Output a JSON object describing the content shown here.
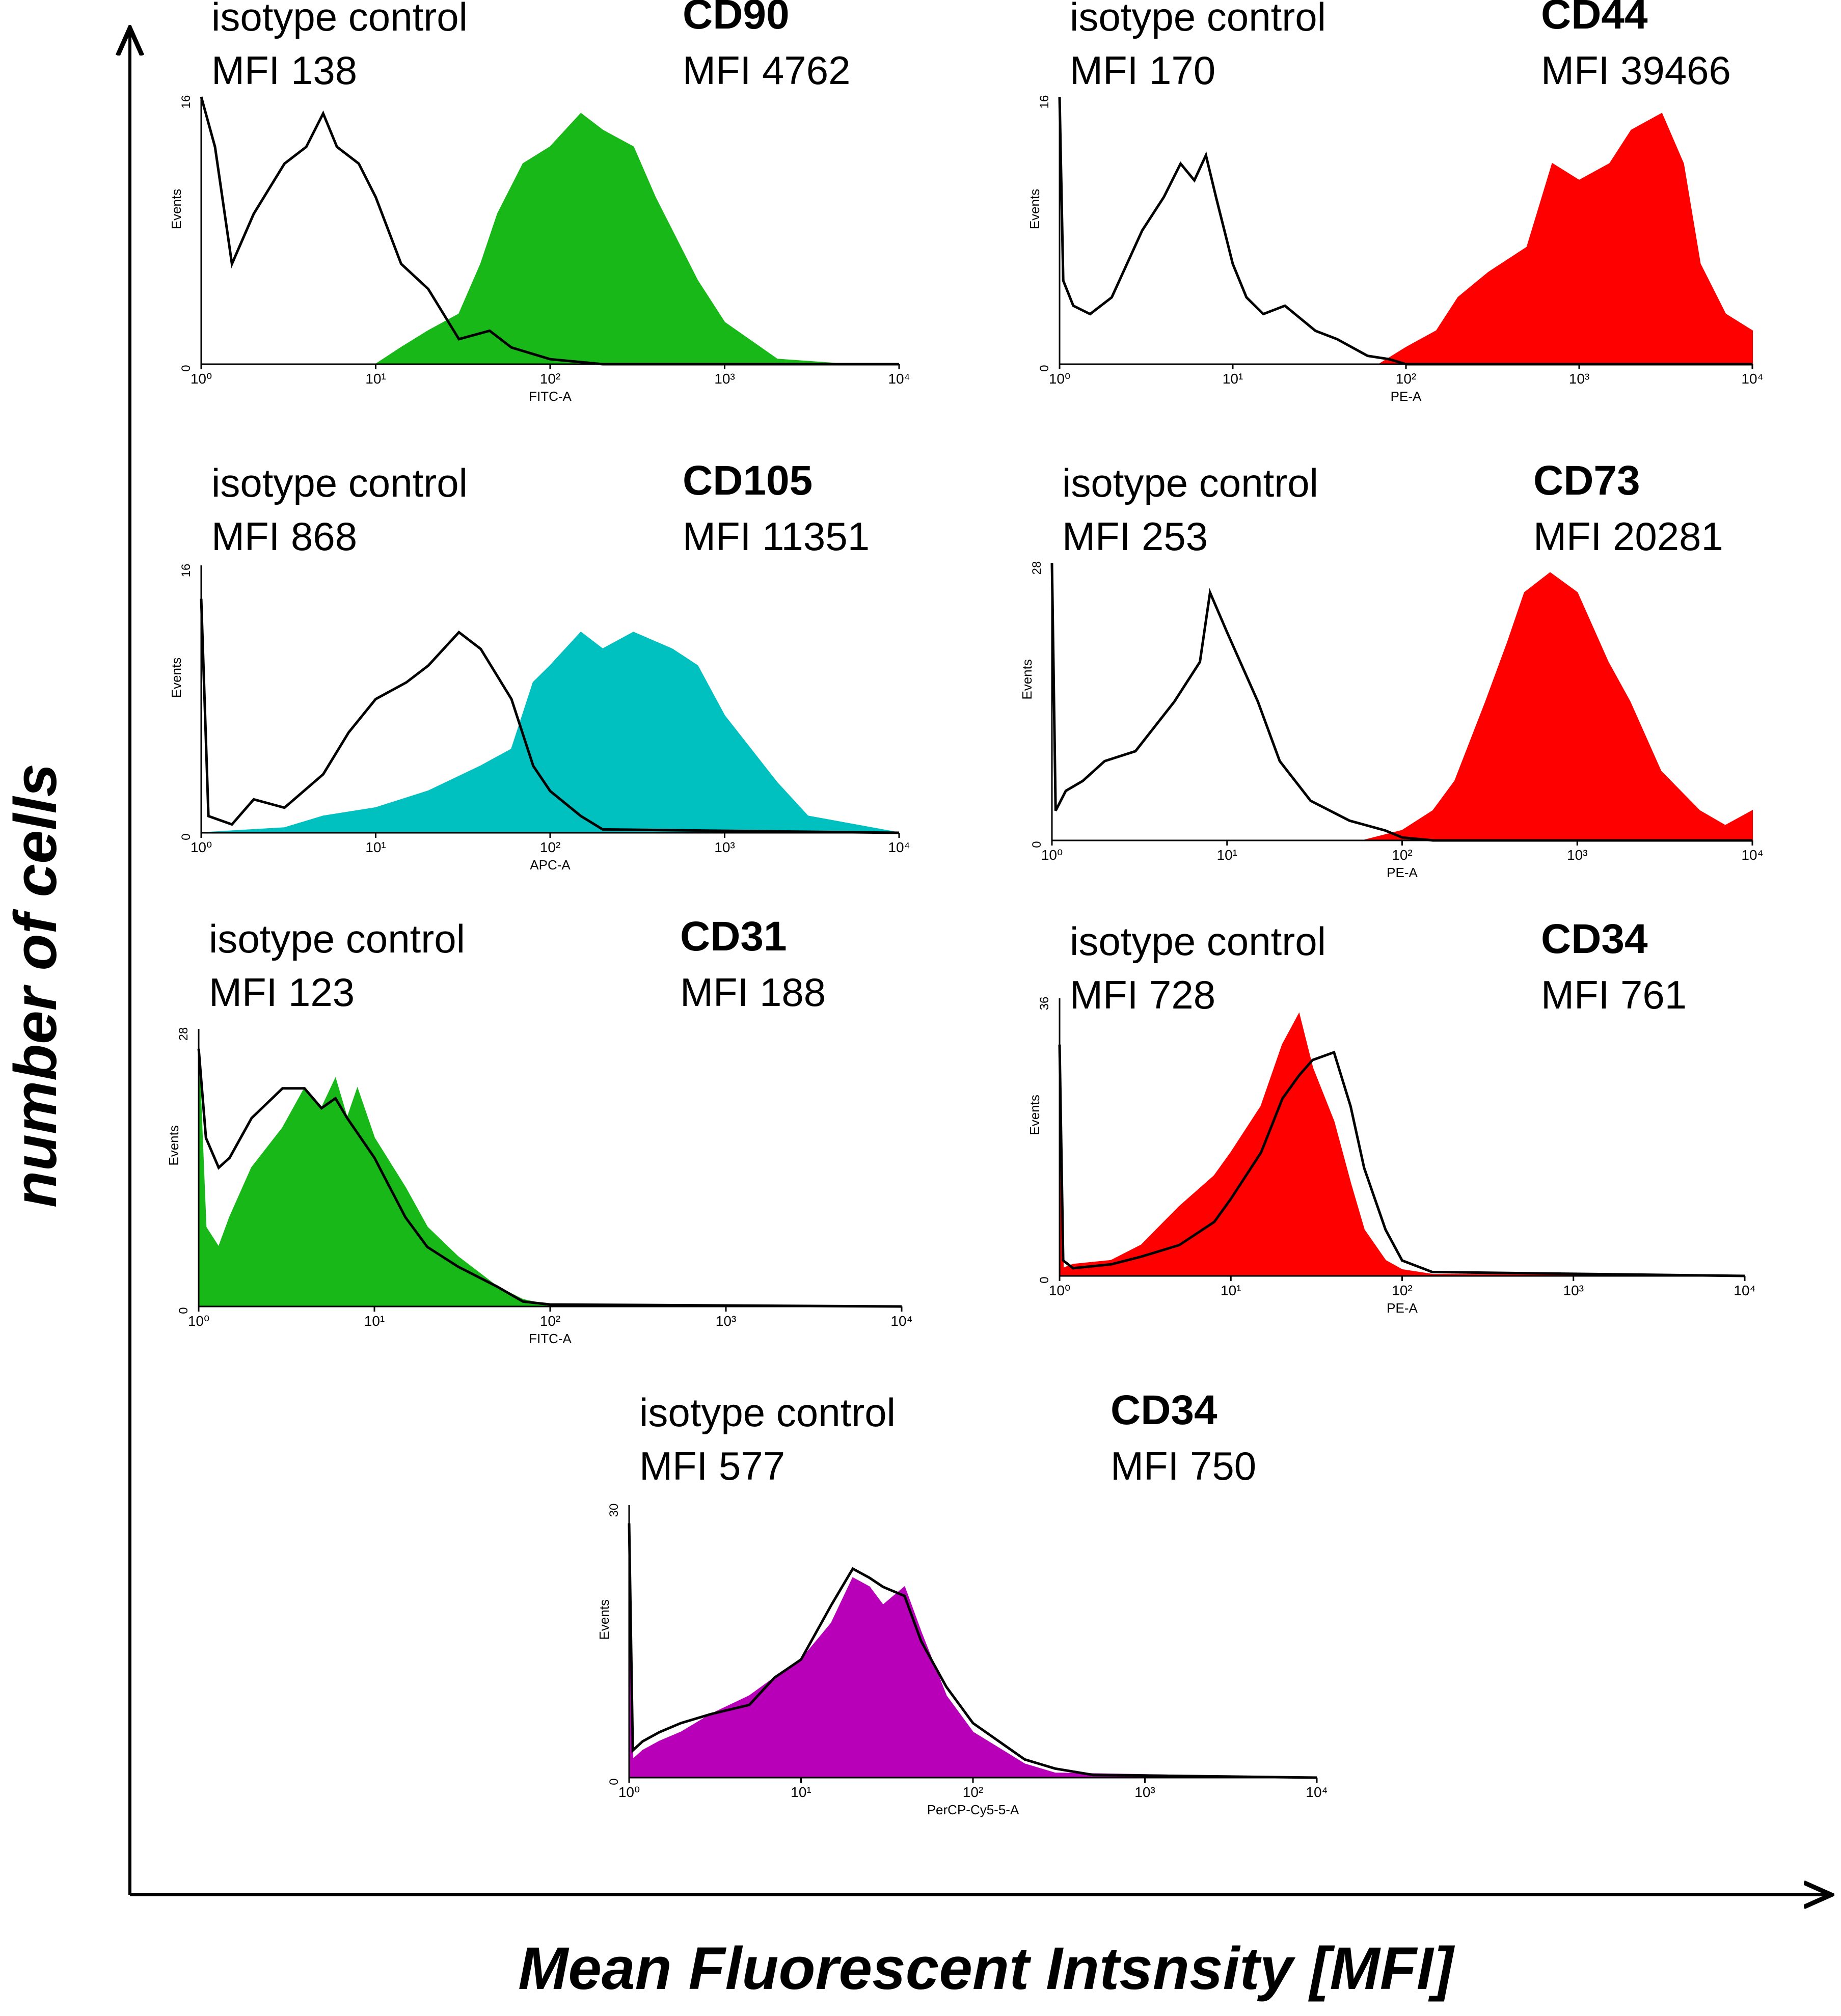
{
  "figure": {
    "y_axis_label": "number of cells",
    "x_axis_label": "Mean Fluorescent Intsnsity [MFI]"
  },
  "chart_data": [
    {
      "type": "area",
      "title": "CD90",
      "control_label": "isotype control",
      "control_mfi": "MFI 138",
      "marker_mfi": "MFI 4762",
      "channel": "FITC-A",
      "ylabel": "Events",
      "ymax_label": "16",
      "ymin_label": "0",
      "ylim": [
        0,
        16
      ],
      "xscale": "log",
      "xlim": [
        1,
        10000
      ],
      "x_ticks": [
        "10⁰",
        "10¹",
        "10²",
        "10³",
        "10⁴"
      ],
      "fill_color": "#18b818",
      "series": [
        {
          "name": "isotype control",
          "style": "outline",
          "x": [
            1,
            1.2,
            1.5,
            2,
            3,
            4,
            5,
            6,
            8,
            10,
            14,
            20,
            30,
            45,
            60,
            100,
            200,
            10000
          ],
          "values": [
            16,
            13,
            6,
            9,
            12,
            13,
            15,
            13,
            12,
            10,
            6,
            4.5,
            1.5,
            2,
            1,
            0.3,
            0,
            0
          ]
        },
        {
          "name": "CD90",
          "style": "filled",
          "x": [
            1,
            10,
            14,
            20,
            30,
            40,
            50,
            70,
            100,
            150,
            200,
            300,
            400,
            500,
            700,
            1000,
            2000,
            5000,
            10000
          ],
          "values": [
            0,
            0,
            1,
            2,
            3,
            6,
            9,
            12,
            13,
            15,
            14,
            13,
            10,
            8,
            5,
            2.5,
            0.3,
            0,
            0
          ]
        }
      ]
    },
    {
      "type": "area",
      "title": "CD44",
      "control_label": "isotype control",
      "control_mfi": "MFI 170",
      "marker_mfi": "MFI 39466",
      "channel": "PE-A",
      "ylabel": "Events",
      "ymax_label": "16",
      "ymin_label": "0",
      "ylim": [
        0,
        16
      ],
      "xscale": "log",
      "xlim": [
        1,
        10000
      ],
      "x_ticks": [
        "10⁰",
        "10¹",
        "10²",
        "10³",
        "10⁴"
      ],
      "fill_color": "#ff0000",
      "series": [
        {
          "name": "isotype control",
          "style": "outline",
          "x": [
            1,
            1.05,
            1.2,
            1.5,
            2,
            3,
            4,
            5,
            6,
            7,
            8,
            10,
            12,
            15,
            20,
            30,
            40,
            60,
            80,
            100,
            10000
          ],
          "values": [
            16,
            5,
            3.5,
            3,
            4,
            8,
            10,
            12,
            11,
            12.5,
            10,
            6,
            4,
            3,
            3.5,
            2,
            1.5,
            0.5,
            0.3,
            0,
            0
          ]
        },
        {
          "name": "CD44",
          "style": "filled",
          "x": [
            1,
            70,
            100,
            150,
            200,
            300,
            500,
            700,
            1000,
            1500,
            2000,
            3000,
            4000,
            5000,
            7000,
            10000
          ],
          "values": [
            0,
            0,
            1,
            2,
            4,
            5.5,
            7,
            12,
            11,
            12,
            14,
            15,
            12,
            6,
            3,
            2
          ]
        }
      ]
    },
    {
      "type": "area",
      "title": "CD105",
      "control_label": "isotype control",
      "control_mfi": "MFI 868",
      "marker_mfi": "MFI 11351",
      "channel": "APC-A",
      "ylabel": "Events",
      "ymax_label": "16",
      "ymin_label": "0",
      "ylim": [
        0,
        16
      ],
      "xscale": "log",
      "xlim": [
        1,
        10000
      ],
      "x_ticks": [
        "10⁰",
        "10¹",
        "10²",
        "10³",
        "10⁴"
      ],
      "fill_color": "#00c0c0",
      "series": [
        {
          "name": "isotype control",
          "style": "outline",
          "x": [
            1,
            1.1,
            1.5,
            2,
            3,
            5,
            7,
            10,
            15,
            20,
            30,
            40,
            60,
            80,
            100,
            150,
            200,
            10000
          ],
          "values": [
            14,
            1,
            0.5,
            2,
            1.5,
            3.5,
            6,
            8,
            9,
            10,
            12,
            11,
            8,
            4,
            2.5,
            1,
            0.2,
            0
          ]
        },
        {
          "name": "CD105",
          "style": "filled",
          "x": [
            1,
            3,
            5,
            10,
            20,
            40,
            60,
            80,
            100,
            150,
            200,
            300,
            500,
            700,
            1000,
            2000,
            3000,
            10000
          ],
          "values": [
            0,
            0.3,
            1,
            1.5,
            2.5,
            4,
            5,
            9,
            10,
            12,
            11,
            12,
            11,
            10,
            7,
            3,
            1,
            0
          ]
        }
      ]
    },
    {
      "type": "area",
      "title": "CD73",
      "control_label": "isotype control",
      "control_mfi": "MFI 253",
      "marker_mfi": "MFI 20281",
      "channel": "PE-A",
      "ylabel": "Events",
      "ymax_label": "28",
      "ymin_label": "0",
      "ylim": [
        0,
        28
      ],
      "xscale": "log",
      "xlim": [
        1,
        10000
      ],
      "x_ticks": [
        "10⁰",
        "10¹",
        "10²",
        "10³",
        "10⁴"
      ],
      "fill_color": "#ff0000",
      "series": [
        {
          "name": "isotype control",
          "style": "outline",
          "x": [
            1,
            1.05,
            1.2,
            1.5,
            2,
            3,
            5,
            7,
            8,
            10,
            15,
            20,
            30,
            50,
            80,
            100,
            150,
            10000
          ],
          "values": [
            28,
            3,
            5,
            6,
            8,
            9,
            14,
            18,
            25,
            21,
            14,
            8,
            4,
            2,
            1,
            0.3,
            0,
            0
          ]
        },
        {
          "name": "CD73",
          "style": "filled",
          "x": [
            1,
            60,
            100,
            150,
            200,
            300,
            400,
            500,
            700,
            1000,
            1500,
            2000,
            3000,
            5000,
            7000,
            10000
          ],
          "values": [
            0,
            0,
            1,
            3,
            6,
            14,
            20,
            25,
            27,
            25,
            18,
            14,
            7,
            3,
            1.5,
            3
          ]
        }
      ]
    },
    {
      "type": "area",
      "title": "CD31",
      "control_label": "isotype control",
      "control_mfi": "MFI 123",
      "marker_mfi": "MFI 188",
      "channel": "FITC-A",
      "ylabel": "Events",
      "ymax_label": "28",
      "ymin_label": "0",
      "ylim": [
        0,
        28
      ],
      "xscale": "log",
      "xlim": [
        1,
        10000
      ],
      "x_ticks": [
        "10⁰",
        "10¹",
        "10²",
        "10³",
        "10⁴"
      ],
      "fill_color": "#18b818",
      "series": [
        {
          "name": "isotype control",
          "style": "outline",
          "x": [
            1,
            1.1,
            1.3,
            1.5,
            2,
            3,
            4,
            5,
            6,
            7,
            10,
            15,
            20,
            30,
            50,
            70,
            100,
            10000
          ],
          "values": [
            26,
            17,
            14,
            15,
            19,
            22,
            22,
            20,
            21,
            19,
            15,
            9,
            6,
            4,
            2,
            0.5,
            0.2,
            0
          ]
        },
        {
          "name": "CD31",
          "style": "filled",
          "x": [
            1,
            1.1,
            1.3,
            1.5,
            2,
            3,
            4,
            5,
            6,
            7,
            8,
            10,
            15,
            20,
            30,
            50,
            70,
            100,
            10000
          ],
          "values": [
            26,
            8,
            6,
            9,
            14,
            18,
            22,
            20,
            23,
            19,
            22,
            17,
            12,
            8,
            5,
            2,
            0.7,
            0.1,
            0
          ]
        }
      ]
    },
    {
      "type": "area",
      "title": "CD34",
      "control_label": "isotype control",
      "control_mfi": "MFI 728",
      "marker_mfi": "MFI 761",
      "channel": "PE-A",
      "ylabel": "Events",
      "ymax_label": "36",
      "ymin_label": "0",
      "ylim": [
        0,
        36
      ],
      "xscale": "log",
      "xlim": [
        1,
        10000
      ],
      "x_ticks": [
        "10⁰",
        "10¹",
        "10²",
        "10³",
        "10⁴"
      ],
      "fill_color": "#ff0000",
      "series": [
        {
          "name": "isotype control",
          "style": "outline",
          "x": [
            1,
            1.05,
            1.2,
            2,
            3,
            5,
            8,
            10,
            15,
            20,
            25,
            30,
            40,
            50,
            60,
            80,
            100,
            150,
            10000
          ],
          "values": [
            30,
            2,
            1,
            1.5,
            2.5,
            4,
            7,
            10,
            16,
            23,
            26,
            28,
            29,
            22,
            14,
            6,
            2,
            0.5,
            0
          ]
        },
        {
          "name": "CD34",
          "style": "filled",
          "x": [
            1,
            1.05,
            1.2,
            2,
            3,
            5,
            8,
            10,
            15,
            20,
            25,
            30,
            40,
            50,
            60,
            80,
            100,
            150,
            10000
          ],
          "values": [
            30,
            1,
            1.5,
            2,
            4,
            9,
            13,
            16,
            22,
            30,
            34,
            27,
            20,
            12,
            6,
            2,
            0.8,
            0.2,
            0
          ]
        }
      ]
    },
    {
      "type": "area",
      "title": "CD34",
      "control_label": "isotype control",
      "control_mfi": "MFI 577",
      "marker_mfi": "MFI 750",
      "channel": "PerCP-Cy5-5-A",
      "ylabel": "Events",
      "ymax_label": "30",
      "ymin_label": "0",
      "ylim": [
        0,
        30
      ],
      "xscale": "log",
      "xlim": [
        1,
        10000
      ],
      "x_ticks": [
        "10⁰",
        "10¹",
        "10²",
        "10³",
        "10⁴"
      ],
      "fill_color": "#b800b8",
      "series": [
        {
          "name": "isotype control",
          "style": "outline",
          "x": [
            1,
            1.05,
            1.2,
            1.5,
            2,
            3,
            5,
            7,
            10,
            15,
            20,
            25,
            30,
            40,
            50,
            70,
            100,
            200,
            300,
            500,
            10000
          ],
          "values": [
            28,
            3,
            4,
            5,
            6,
            7,
            8,
            11,
            13,
            19,
            23,
            22,
            21,
            20,
            15,
            10,
            6,
            2,
            1,
            0.3,
            0
          ]
        },
        {
          "name": "CD34",
          "style": "filled",
          "x": [
            1,
            1.05,
            1.2,
            1.5,
            2,
            3,
            5,
            7,
            10,
            15,
            20,
            25,
            30,
            40,
            50,
            70,
            100,
            200,
            300,
            10000
          ],
          "values": [
            28,
            2,
            3,
            4,
            5,
            7,
            9,
            11,
            13,
            17,
            22,
            21,
            19,
            21,
            16,
            9,
            5,
            1.5,
            0.5,
            0
          ]
        }
      ]
    }
  ]
}
